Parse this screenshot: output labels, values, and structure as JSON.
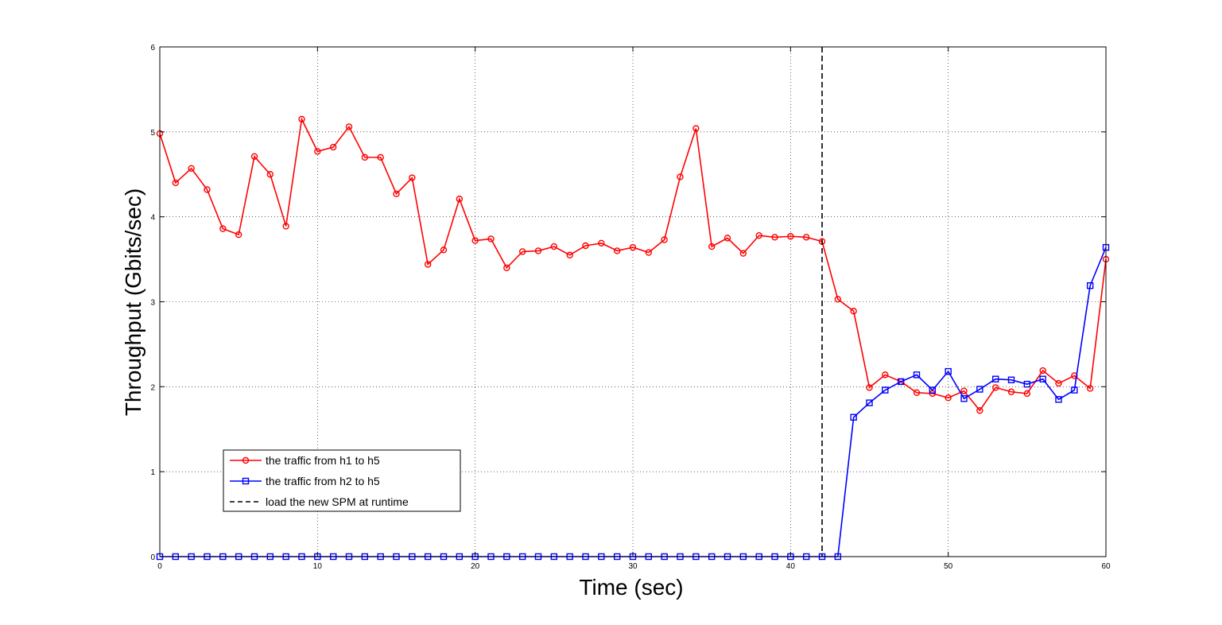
{
  "chart_data": {
    "type": "line",
    "title": "",
    "xlabel": "Time (sec)",
    "ylabel": "Throughput (Gbits/sec)",
    "xlim": [
      0,
      60
    ],
    "ylim": [
      0,
      6
    ],
    "xticks": [
      0,
      10,
      20,
      30,
      40,
      50,
      60
    ],
    "yticks": [
      0,
      1,
      2,
      3,
      4,
      5,
      6
    ],
    "grid": true,
    "legend_position": "bottom-left",
    "series": [
      {
        "name": "the traffic from h1 to h5",
        "color": "#ff0000",
        "marker": "circle",
        "x": [
          0,
          1,
          2,
          3,
          4,
          5,
          6,
          7,
          8,
          9,
          10,
          11,
          12,
          13,
          14,
          15,
          16,
          17,
          18,
          19,
          20,
          21,
          22,
          23,
          24,
          25,
          26,
          27,
          28,
          29,
          30,
          31,
          32,
          33,
          34,
          35,
          36,
          37,
          38,
          39,
          40,
          41,
          42,
          43,
          44,
          45,
          46,
          47,
          48,
          49,
          50,
          51,
          52,
          53,
          54,
          55,
          56,
          57,
          58,
          59,
          60
        ],
        "y": [
          4.98,
          4.4,
          4.57,
          4.32,
          3.86,
          3.79,
          4.71,
          4.5,
          3.89,
          5.15,
          4.77,
          4.82,
          5.06,
          4.7,
          4.7,
          4.27,
          4.46,
          3.44,
          3.61,
          4.21,
          3.72,
          3.74,
          3.4,
          3.59,
          3.6,
          3.65,
          3.55,
          3.66,
          3.69,
          3.6,
          3.64,
          3.58,
          3.73,
          4.47,
          5.04,
          3.65,
          3.75,
          3.57,
          3.78,
          3.76,
          3.77,
          3.76,
          3.71,
          3.03,
          2.89,
          1.99,
          2.14,
          2.06,
          1.93,
          1.92,
          1.87,
          1.95,
          1.72,
          1.99,
          1.94,
          1.92,
          2.19,
          2.04,
          2.13,
          1.98,
          3.5
        ]
      },
      {
        "name": "the traffic from h2 to h5",
        "color": "#0000ff",
        "marker": "square",
        "x": [
          0,
          1,
          2,
          3,
          4,
          5,
          6,
          7,
          8,
          9,
          10,
          11,
          12,
          13,
          14,
          15,
          16,
          17,
          18,
          19,
          20,
          21,
          22,
          23,
          24,
          25,
          26,
          27,
          28,
          29,
          30,
          31,
          32,
          33,
          34,
          35,
          36,
          37,
          38,
          39,
          40,
          41,
          42,
          43,
          44,
          45,
          46,
          47,
          48,
          49,
          50,
          51,
          52,
          53,
          54,
          55,
          56,
          57,
          58,
          59,
          60
        ],
        "y": [
          0,
          0,
          0,
          0,
          0,
          0,
          0,
          0,
          0,
          0,
          0,
          0,
          0,
          0,
          0,
          0,
          0,
          0,
          0,
          0,
          0,
          0,
          0,
          0,
          0,
          0,
          0,
          0,
          0,
          0,
          0,
          0,
          0,
          0,
          0,
          0,
          0,
          0,
          0,
          0,
          0,
          0,
          0,
          0,
          1.64,
          1.81,
          1.96,
          2.06,
          2.14,
          1.96,
          2.18,
          1.86,
          1.97,
          2.09,
          2.08,
          2.03,
          2.09,
          1.85,
          1.96,
          3.19,
          3.64
        ]
      }
    ],
    "annotations": [
      {
        "type": "vertical-dashed-line",
        "x": 42,
        "color": "#000000",
        "label": "load the new SPM at runtime"
      }
    ]
  }
}
